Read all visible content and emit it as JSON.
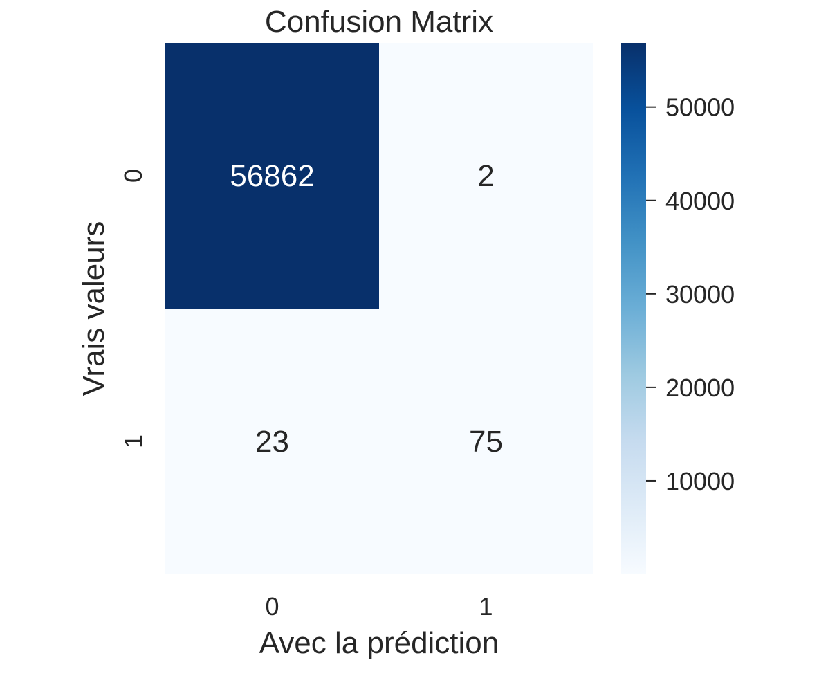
{
  "chart_data": {
    "type": "heatmap",
    "title": "Confusion Matrix",
    "xlabel": "Avec la prédiction",
    "ylabel": "Vrais valeurs",
    "x_categories": [
      "0",
      "1"
    ],
    "y_categories": [
      "0",
      "1"
    ],
    "values": [
      [
        56862,
        2
      ],
      [
        23,
        75
      ]
    ],
    "colorbar": {
      "min": 2,
      "max": 56862,
      "ticks": [
        10000,
        20000,
        30000,
        40000,
        50000
      ],
      "tick_labels": [
        "10000",
        "20000",
        "30000",
        "40000",
        "50000"
      ],
      "colormap": "Blues",
      "low_color": "#f7fbff",
      "high_color": "#08306b"
    },
    "grid": false
  }
}
